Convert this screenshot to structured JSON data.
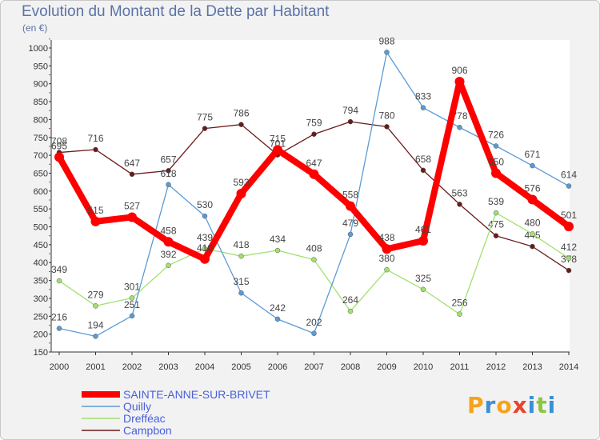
{
  "chart_data": {
    "type": "line",
    "title": "Evolution du Montant de la Dette par Habitant",
    "subtitle": "(en €)",
    "x": [
      "2000",
      "2001",
      "2002",
      "2003",
      "2004",
      "2005",
      "2006",
      "2007",
      "2008",
      "2009",
      "2010",
      "2011",
      "2012",
      "2013",
      "2014"
    ],
    "ylim": [
      150,
      1000
    ],
    "yticks": [
      150,
      200,
      250,
      300,
      350,
      400,
      450,
      500,
      550,
      600,
      650,
      700,
      750,
      800,
      850,
      900,
      950,
      1000
    ],
    "grid": false,
    "legend_position": "bottom-left",
    "series": [
      {
        "name": "SAINTE-ANNE-SUR-BRIVET",
        "color": "#ff0000",
        "values": [
          695,
          515,
          527,
          458,
          410,
          593,
          715,
          647,
          558,
          438,
          461,
          906,
          650,
          576,
          501
        ]
      },
      {
        "name": "Quilly",
        "color": "#5b9bd5",
        "values": [
          216,
          194,
          251,
          618,
          530,
          315,
          242,
          202,
          479,
          988,
          833,
          778,
          726,
          671,
          614
        ]
      },
      {
        "name": "Drefféac",
        "color": "#a3e070",
        "values": [
          349,
          279,
          301,
          392,
          439,
          418,
          434,
          408,
          264,
          380,
          325,
          256,
          539,
          480,
          412
        ]
      },
      {
        "name": "Campbon",
        "color": "#6b1a1a",
        "values": [
          708,
          716,
          647,
          657,
          775,
          786,
          701,
          759,
          794,
          780,
          658,
          563,
          475,
          445,
          378
        ]
      }
    ]
  },
  "logo": {
    "letters": [
      "P",
      "r",
      "o",
      "x",
      "i",
      "t",
      "i"
    ],
    "colors": [
      "#f7a21b",
      "#3a8fd6",
      "#f7a21b",
      "#e8442b",
      "#3a8fd6",
      "#8cc63f",
      "#3a8fd6"
    ]
  }
}
